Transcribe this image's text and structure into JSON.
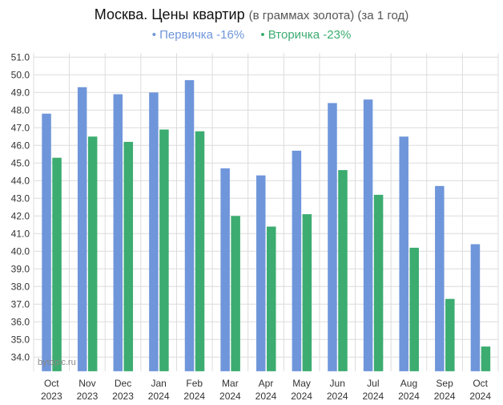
{
  "chart_data": {
    "type": "bar",
    "title": "Москва. Цены квартир",
    "subtitle": "(в граммах золота) (за 1 год)",
    "categories": [
      [
        "Oct",
        "2023"
      ],
      [
        "Nov",
        "2023"
      ],
      [
        "Dec",
        "2023"
      ],
      [
        "Jan",
        "2024"
      ],
      [
        "Feb",
        "2024"
      ],
      [
        "Mar",
        "2024"
      ],
      [
        "Apr",
        "2024"
      ],
      [
        "May",
        "2024"
      ],
      [
        "Jun",
        "2024"
      ],
      [
        "Jul",
        "2024"
      ],
      [
        "Aug",
        "2024"
      ],
      [
        "Sep",
        "2024"
      ],
      [
        "Oct",
        "2024"
      ]
    ],
    "series": [
      {
        "name": "Первичка -16%",
        "color": "#6f96da",
        "values": [
          47.8,
          49.3,
          48.9,
          49.0,
          49.7,
          44.7,
          44.3,
          45.7,
          48.4,
          48.6,
          46.5,
          43.7,
          40.4
        ]
      },
      {
        "name": "Вторичка -23%",
        "color": "#3cac71",
        "values": [
          45.3,
          46.5,
          46.2,
          46.9,
          46.8,
          42.0,
          41.4,
          42.1,
          44.6,
          43.2,
          40.2,
          37.3,
          34.6
        ]
      }
    ],
    "ylim": [
      33.2,
      51.0
    ],
    "yticks": [
      "34.0",
      "35.0",
      "36.0",
      "37.0",
      "38.0",
      "39.0",
      "40.0",
      "41.0",
      "42.0",
      "43.0",
      "44.0",
      "45.0",
      "46.0",
      "47.0",
      "48.0",
      "49.0",
      "50.0",
      "51.0"
    ],
    "grid": true,
    "legend": "top-center",
    "watermark": "bytopic.ru"
  }
}
